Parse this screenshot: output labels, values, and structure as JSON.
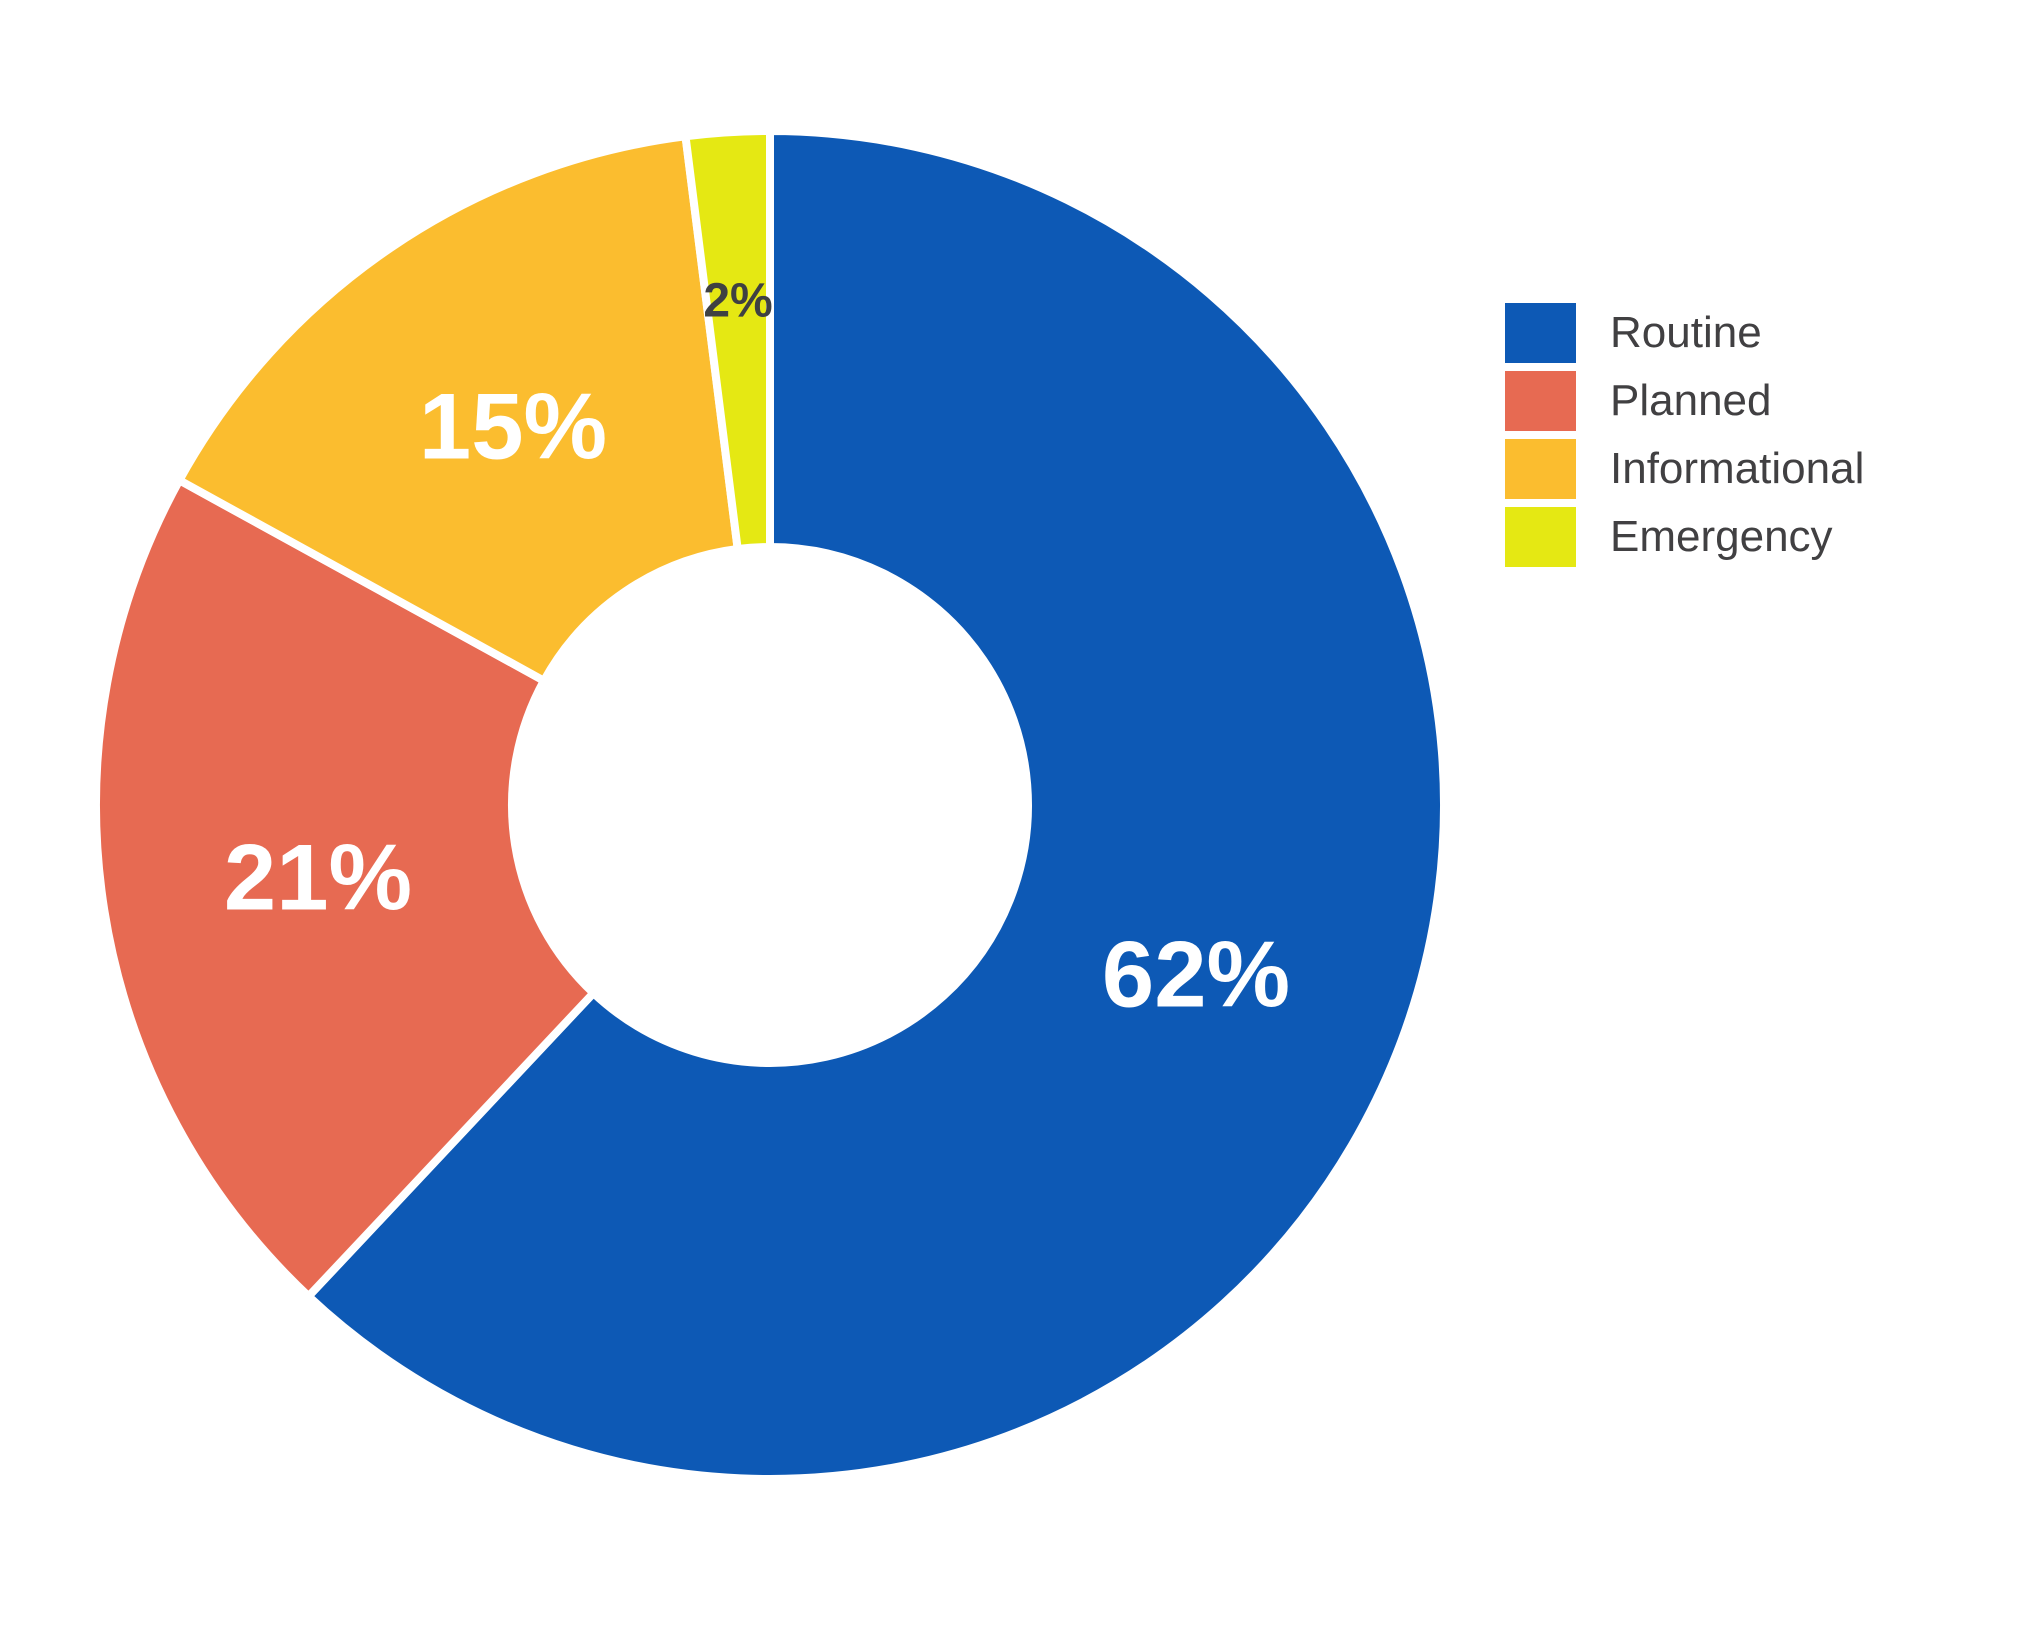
{
  "chart_data": {
    "type": "pie",
    "subtype": "donut",
    "categories": [
      "Routine",
      "Planned",
      "Informational",
      "Emergency"
    ],
    "values": [
      62,
      21,
      15,
      2
    ],
    "unit": "%",
    "segments": [
      {
        "label": "Routine",
        "value": 62,
        "value_label": "62%",
        "color": "#0D59B5",
        "value_label_color": "#FFFFFF"
      },
      {
        "label": "Planned",
        "value": 21,
        "value_label": "21%",
        "color": "#E76A52",
        "value_label_color": "#FFFFFF"
      },
      {
        "label": "Informational",
        "value": 15,
        "value_label": "15%",
        "color": "#FBBD2F",
        "value_label_color": "#FFFFFF"
      },
      {
        "label": "Emergency",
        "value": 2,
        "value_label": "2%",
        "color": "#E5E813",
        "value_label_color": "#3F4142"
      }
    ],
    "layout": {
      "start_angle_deg": 0,
      "direction": "clockwise",
      "donut_hole_ratio": 0.383,
      "legend_position": "right",
      "slice_gap_color": "#FFFFFF",
      "background": "#FFFFFF"
    }
  },
  "legend": {
    "text_color": "#414042"
  }
}
